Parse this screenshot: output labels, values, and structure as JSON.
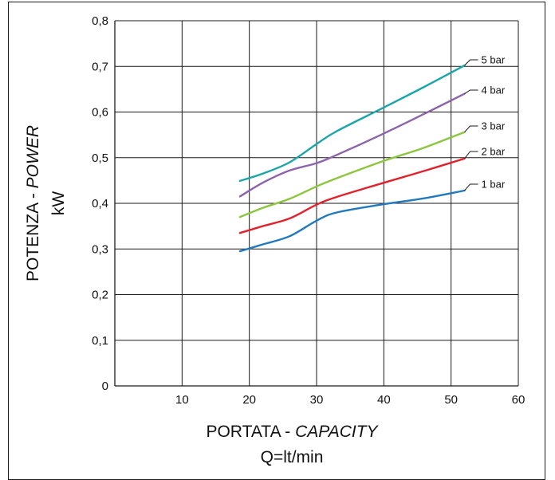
{
  "chart_data": {
    "type": "line",
    "title": "",
    "xlabel": {
      "line1_plain": "PORTATA - ",
      "line1_italic": "CAPACITY",
      "line2": "Q=lt/min"
    },
    "ylabel": {
      "line1_plain": "POTENZA - ",
      "line1_italic": "POWER",
      "line2": "kW"
    },
    "xlim": [
      0,
      60
    ],
    "ylim": [
      0,
      0.8
    ],
    "x_ticks": [
      {
        "value": 10,
        "label": "10"
      },
      {
        "value": 20,
        "label": "20"
      },
      {
        "value": 30,
        "label": "30"
      },
      {
        "value": 40,
        "label": "40"
      },
      {
        "value": 50,
        "label": "50"
      },
      {
        "value": 60,
        "label": "60"
      }
    ],
    "y_ticks": [
      {
        "value": 0,
        "label": "0"
      },
      {
        "value": 0.1,
        "label": "0,1"
      },
      {
        "value": 0.2,
        "label": "0,2"
      },
      {
        "value": 0.3,
        "label": "0,3"
      },
      {
        "value": 0.4,
        "label": "0,4"
      },
      {
        "value": 0.5,
        "label": "0,5"
      },
      {
        "value": 0.6,
        "label": "0,6"
      },
      {
        "value": 0.7,
        "label": "0,7"
      },
      {
        "value": 0.8,
        "label": "0,8"
      }
    ],
    "grid": true,
    "series": [
      {
        "name": "5 bar",
        "color": "#1aa5a8",
        "points": [
          [
            18.6,
            0.449
          ],
          [
            22,
            0.465
          ],
          [
            26,
            0.49
          ],
          [
            30,
            0.53
          ],
          [
            33,
            0.558
          ],
          [
            40,
            0.61
          ],
          [
            46,
            0.655
          ],
          [
            52,
            0.702
          ]
        ]
      },
      {
        "name": "4 bar",
        "color": "#8c63ac",
        "points": [
          [
            18.6,
            0.415
          ],
          [
            22,
            0.445
          ],
          [
            26,
            0.472
          ],
          [
            30,
            0.488
          ],
          [
            33,
            0.506
          ],
          [
            40,
            0.553
          ],
          [
            46,
            0.596
          ],
          [
            52,
            0.64
          ]
        ]
      },
      {
        "name": "3 bar",
        "color": "#8cc63e",
        "points": [
          [
            18.6,
            0.37
          ],
          [
            22,
            0.39
          ],
          [
            26,
            0.41
          ],
          [
            30,
            0.437
          ],
          [
            33,
            0.455
          ],
          [
            40,
            0.493
          ],
          [
            46,
            0.522
          ],
          [
            52,
            0.556
          ]
        ]
      },
      {
        "name": "2 bar",
        "color": "#e2212b",
        "points": [
          [
            18.6,
            0.335
          ],
          [
            22,
            0.35
          ],
          [
            26,
            0.367
          ],
          [
            30,
            0.397
          ],
          [
            33,
            0.414
          ],
          [
            40,
            0.445
          ],
          [
            46,
            0.471
          ],
          [
            52,
            0.498
          ]
        ]
      },
      {
        "name": "1 bar",
        "color": "#2179be",
        "points": [
          [
            18.6,
            0.295
          ],
          [
            22,
            0.31
          ],
          [
            26,
            0.328
          ],
          [
            30,
            0.362
          ],
          [
            33,
            0.38
          ],
          [
            40,
            0.398
          ],
          [
            46,
            0.411
          ],
          [
            52,
            0.428
          ]
        ]
      }
    ]
  }
}
